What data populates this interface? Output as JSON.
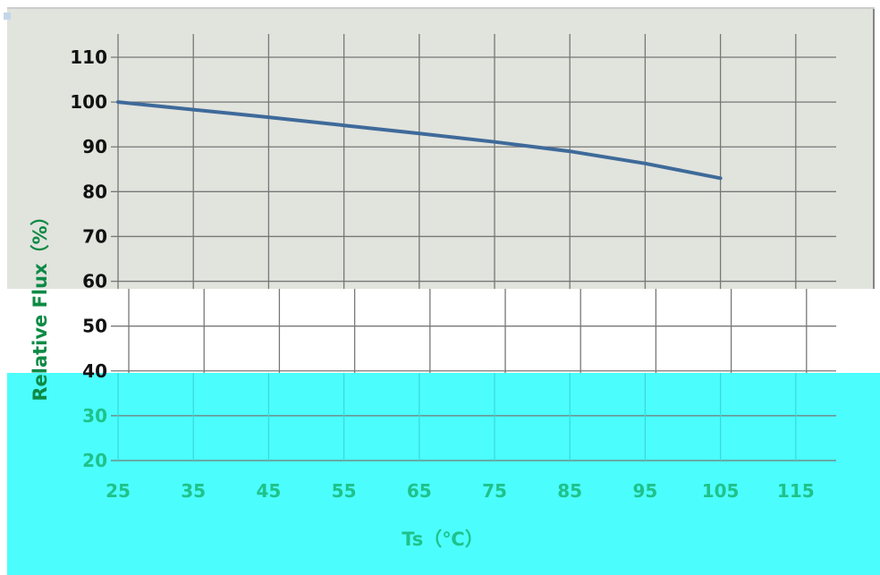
{
  "chart_data": {
    "type": "line",
    "title": "",
    "xlabel": "Ts（℃）",
    "ylabel": "Relative Flux（%）",
    "xlim": [
      25,
      125
    ],
    "ylim": [
      20,
      110
    ],
    "x_ticks": [
      "25",
      "35",
      "45",
      "55",
      "65",
      "75",
      "85",
      "95",
      "105",
      "115"
    ],
    "y_ticks": [
      "110",
      "100",
      "90",
      "80",
      "70",
      "60",
      "50",
      "40",
      "30",
      "20"
    ],
    "grid": true,
    "legend": "none",
    "series": [
      {
        "color": "#3e6a9a",
        "x": [
          25,
          35,
          45,
          55,
          65,
          75,
          85,
          95,
          105
        ],
        "y": [
          100,
          98.3,
          96.6,
          94.8,
          93,
          91.1,
          89,
          86.3,
          83
        ]
      }
    ]
  },
  "colors": {
    "upper_band": "#e1e3dd",
    "lower_band": "#4bfdfd",
    "grid": "#777777",
    "tick_text_upper": "#111111",
    "tick_text_lower": "#1fc28a"
  }
}
